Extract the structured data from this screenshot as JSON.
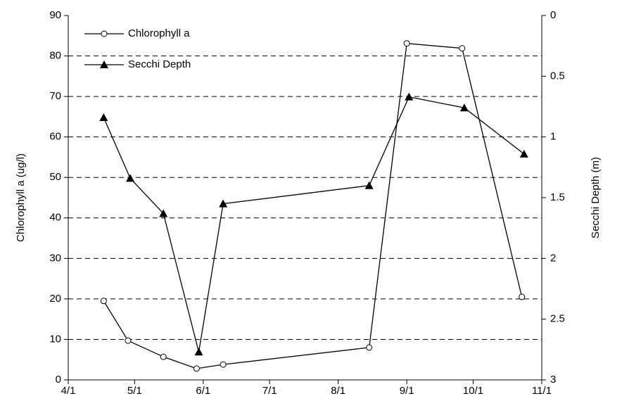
{
  "chart_data": {
    "type": "line",
    "ylabel": "Chlorophyll a (ug/l)",
    "y2label": "Secchi Depth (m)",
    "ylim": [
      0,
      90
    ],
    "yticks": [
      0,
      10,
      20,
      30,
      40,
      50,
      60,
      70,
      80,
      90
    ],
    "y2lim": [
      3,
      0
    ],
    "y2ticks": [
      0,
      0.5,
      1,
      1.5,
      2,
      2.5,
      3
    ],
    "xlim": [
      91,
      305
    ],
    "xticks": [
      {
        "value": 91,
        "label": "4/1"
      },
      {
        "value": 121,
        "label": "5/1"
      },
      {
        "value": 152,
        "label": "6/1"
      },
      {
        "value": 182,
        "label": "7/1"
      },
      {
        "value": 213,
        "label": "8/1"
      },
      {
        "value": 244,
        "label": "9/1"
      },
      {
        "value": 274,
        "label": "10/1"
      },
      {
        "value": 305,
        "label": "11/1"
      }
    ],
    "grid": true,
    "legend": "top-left",
    "series": [
      {
        "name": "Chlorophyll a",
        "color": "#000000",
        "marker": "circle",
        "axis": "y",
        "x": [
          107,
          118,
          134,
          149,
          161,
          227,
          244,
          269,
          296
        ],
        "values": [
          19.5,
          9.7,
          5.7,
          2.8,
          3.8,
          8.0,
          83.1,
          81.9,
          20.5
        ]
      },
      {
        "name": "Secchi Depth",
        "color": "#000000",
        "marker": "triangle",
        "axis": "y2",
        "x": [
          107,
          119,
          134,
          150,
          161,
          227,
          245,
          270,
          297
        ],
        "values": [
          0.84,
          1.34,
          1.63,
          2.77,
          1.55,
          1.4,
          0.67,
          0.76,
          1.14
        ]
      }
    ]
  }
}
